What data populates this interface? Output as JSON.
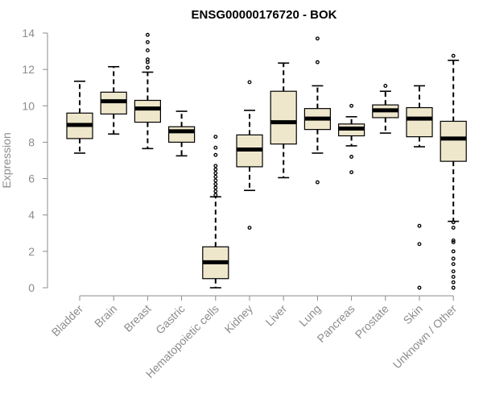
{
  "chart_data": {
    "type": "boxplot",
    "title": "ENSG00000176720 - BOK",
    "xlabel": "",
    "ylabel": "Expression",
    "ylim": [
      0,
      14
    ],
    "yticks": [
      0,
      2,
      4,
      6,
      8,
      10,
      12,
      14
    ],
    "box_fill": "#efe7cc",
    "categories": [
      "Bladder",
      "Brain",
      "Breast",
      "Gastric",
      "Hematopoietic cells",
      "Kidney",
      "Liver",
      "Lung",
      "Pancreas",
      "Prostate",
      "Skin",
      "Unknown / Other"
    ],
    "boxes": [
      {
        "name": "Bladder",
        "whisker_low": 7.4,
        "q1": 8.2,
        "median": 8.95,
        "q3": 9.6,
        "whisker_high": 11.35,
        "outliers": []
      },
      {
        "name": "Brain",
        "whisker_low": 8.45,
        "q1": 9.55,
        "median": 10.25,
        "q3": 10.75,
        "whisker_high": 12.15,
        "outliers": []
      },
      {
        "name": "Breast",
        "whisker_low": 7.65,
        "q1": 9.1,
        "median": 9.85,
        "q3": 10.3,
        "whisker_high": 11.85,
        "outliers": [
          12.1,
          12.4,
          12.55,
          13.05,
          13.5,
          13.9
        ]
      },
      {
        "name": "Gastric",
        "whisker_low": 7.25,
        "q1": 8.0,
        "median": 8.6,
        "q3": 8.85,
        "whisker_high": 9.7,
        "outliers": []
      },
      {
        "name": "Hematopoietic cells",
        "whisker_low": 0.0,
        "q1": 0.5,
        "median": 1.4,
        "q3": 2.25,
        "whisker_high": 5.0,
        "outliers": [
          5.1,
          5.3,
          5.5,
          5.7,
          5.9,
          6.1,
          6.3,
          6.5,
          6.7,
          7.3,
          7.7,
          8.3
        ]
      },
      {
        "name": "Kidney",
        "whisker_low": 5.35,
        "q1": 6.65,
        "median": 7.6,
        "q3": 8.4,
        "whisker_high": 9.75,
        "outliers": [
          3.3,
          11.3
        ]
      },
      {
        "name": "Liver",
        "whisker_low": 6.05,
        "q1": 7.9,
        "median": 9.1,
        "q3": 10.8,
        "whisker_high": 12.35,
        "outliers": []
      },
      {
        "name": "Lung",
        "whisker_low": 7.4,
        "q1": 8.7,
        "median": 9.3,
        "q3": 9.85,
        "whisker_high": 11.1,
        "outliers": [
          5.8,
          12.4,
          13.7
        ]
      },
      {
        "name": "Pancreas",
        "whisker_low": 7.8,
        "q1": 8.35,
        "median": 8.75,
        "q3": 9.0,
        "whisker_high": 9.4,
        "outliers": [
          6.35,
          7.2,
          10.0
        ]
      },
      {
        "name": "Prostate",
        "whisker_low": 8.5,
        "q1": 9.35,
        "median": 9.75,
        "q3": 10.05,
        "whisker_high": 10.8,
        "outliers": [
          11.1
        ]
      },
      {
        "name": "Skin",
        "whisker_low": 7.75,
        "q1": 8.3,
        "median": 9.3,
        "q3": 9.9,
        "whisker_high": 11.1,
        "outliers": [
          0.0,
          2.4,
          3.4
        ]
      },
      {
        "name": "Unknown / Other",
        "whisker_low": 3.65,
        "q1": 6.95,
        "median": 8.2,
        "q3": 9.15,
        "whisker_high": 12.5,
        "outliers": [
          0.0,
          0.3,
          0.6,
          0.9,
          1.3,
          1.6,
          2.0,
          2.5,
          2.6,
          3.3,
          3.6,
          12.75
        ]
      }
    ]
  }
}
